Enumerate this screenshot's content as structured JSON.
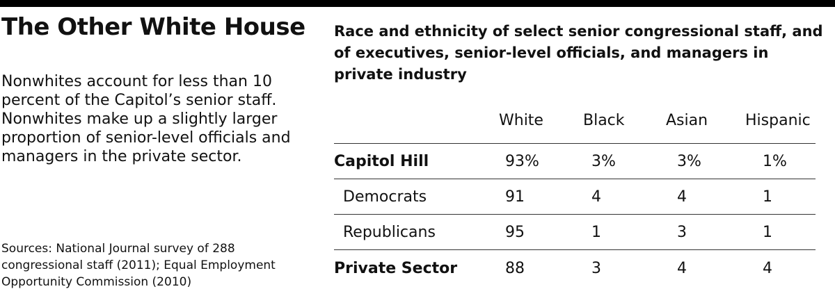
{
  "title": "The Other White House",
  "description": "Nonwhites account for less than 10 percent of the Capitol’s senior staff. Nonwhites make up a slightly larger proportion of senior-level officials and managers in the private sector.",
  "sources": "Sources: National Journal survey of 288 congressional staff (2011); Equal Employment Opportunity Commission (2010)",
  "chart_data": {
    "type": "table",
    "title": "Race and ethnicity of select senior congressional staff, and of executives, senior-level officials, and managers in private industry",
    "columns": [
      "White",
      "Black",
      "Asian",
      "Hispanic"
    ],
    "rows": [
      {
        "label": "Capitol Hill",
        "values": [
          "93%",
          "3%",
          "3%",
          "1%"
        ]
      },
      {
        "label": "Democrats",
        "values": [
          "91",
          "4",
          "4",
          "1"
        ]
      },
      {
        "label": "Republicans",
        "values": [
          "95",
          "1",
          "3",
          "1"
        ]
      },
      {
        "label": "Private Sector",
        "values": [
          "88",
          "3",
          "4",
          "4"
        ]
      }
    ]
  }
}
